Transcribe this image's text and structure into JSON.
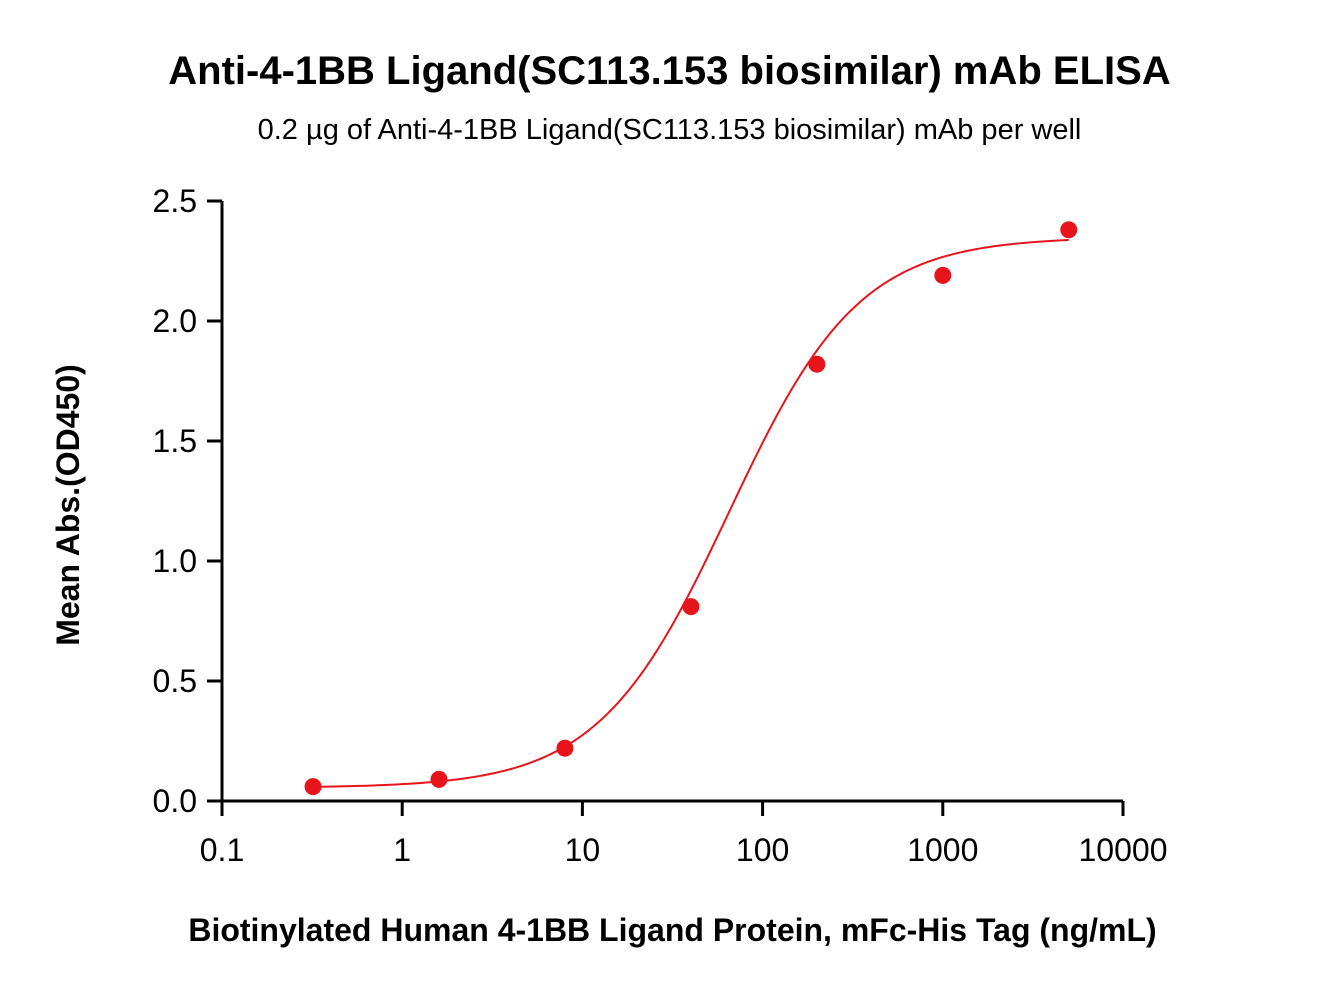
{
  "chart_data": {
    "type": "scatter",
    "title": "Anti-4-1BB Ligand(SC113.153 biosimilar) mAb ELISA",
    "subtitle": "0.2 µg of Anti-4-1BB Ligand(SC113.153 biosimilar) mAb per well",
    "xlabel": "Biotinylated Human 4-1BB Ligand Protein, mFc-His Tag (ng/mL)",
    "ylabel": "Mean Abs.(OD450)",
    "x_scale": "log",
    "xlim": [
      0.1,
      10000
    ],
    "ylim": [
      0,
      2.5
    ],
    "x_ticks": [
      "0.1",
      "1",
      "10",
      "100",
      "1000",
      "10000"
    ],
    "x_tick_values": [
      0.1,
      1,
      10,
      100,
      1000,
      10000
    ],
    "y_ticks": [
      "0.0",
      "0.5",
      "1.0",
      "1.5",
      "2.0",
      "2.5"
    ],
    "y_tick_values": [
      0,
      0.5,
      1.0,
      1.5,
      2.0,
      2.5
    ],
    "grid": false,
    "legend": "none",
    "series": [
      {
        "x": [
          0.32,
          1.6,
          8,
          40,
          200,
          1000,
          5000
        ],
        "y": [
          0.06,
          0.09,
          0.22,
          0.81,
          1.82,
          2.19,
          2.38
        ],
        "fit": "4PL sigmoid",
        "fit_params": {
          "bottom": 0.055,
          "top": 2.35,
          "ec50": 65,
          "hill": 1.2
        },
        "color": "#e8141c"
      }
    ]
  }
}
